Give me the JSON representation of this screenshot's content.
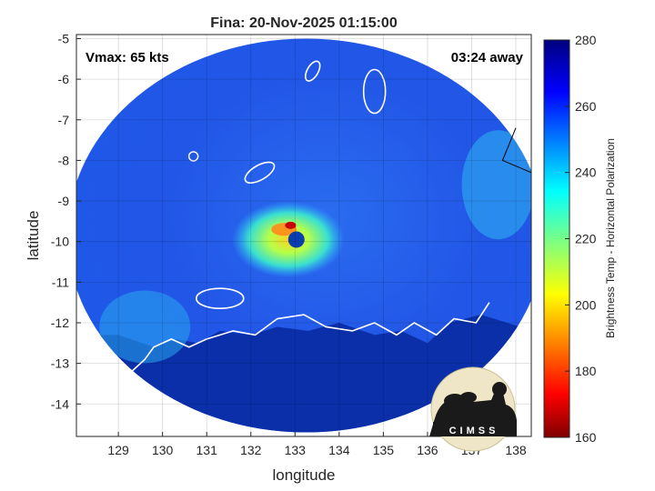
{
  "title": "Fina: 20-Nov-2025 01:15:00",
  "annotations": {
    "vmax": "Vmax: 65 kts",
    "eta": "03:24 away"
  },
  "xaxis": {
    "label": "longitude",
    "ticks": [
      129,
      130,
      131,
      132,
      133,
      134,
      135,
      136,
      137,
      138
    ],
    "range": [
      128.05,
      138.35
    ]
  },
  "yaxis": {
    "label": "latitude",
    "ticks": [
      -5,
      -6,
      -7,
      -8,
      -9,
      -10,
      -11,
      -12,
      -13,
      -14
    ],
    "range": [
      -14.8,
      -4.9
    ]
  },
  "colorbar": {
    "label": "Brightness Temp - Horizontal Polarization",
    "ticks": [
      280,
      260,
      240,
      220,
      200,
      180,
      160
    ],
    "range": [
      160,
      280
    ],
    "colormap": "jet"
  },
  "logo": {
    "text": "CIMSS"
  },
  "grid": true,
  "storm": {
    "center_lon": 132.85,
    "center_lat": -9.95,
    "eye_lon": 133.03,
    "eye_lat": -9.95,
    "swath_center_lon": 133.25,
    "swath_center_lat": -9.85,
    "swath_radius_lon": 5.4,
    "swath_radius_lat": 4.85
  },
  "colors": {
    "background_cold": "#0a2fa8",
    "land_warm": "#0d2a9a",
    "coast": "#ffffff",
    "coast_outside": "#000000"
  }
}
